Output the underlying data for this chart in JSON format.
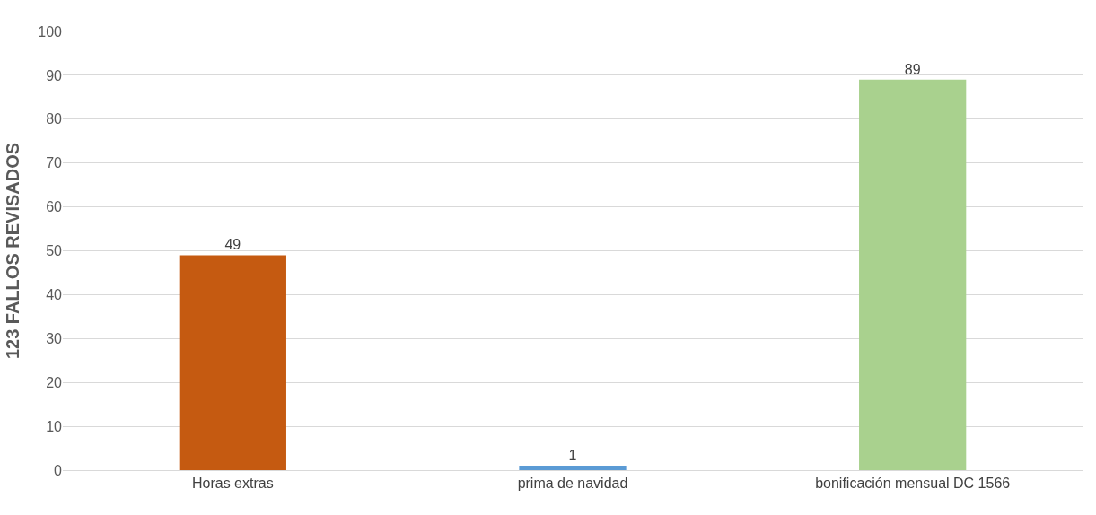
{
  "chart_data": {
    "type": "bar",
    "ylabel": "123 FALLOS REVISADOS",
    "categories": [
      "Horas extras",
      "prima de navidad",
      "bonificación mensual DC 1566"
    ],
    "values": [
      49,
      1,
      89
    ],
    "colors": [
      "#c55a11",
      "#5b9bd5",
      "#a9d18e"
    ],
    "ylim": [
      0,
      100
    ],
    "yticks": [
      0,
      10,
      20,
      30,
      40,
      50,
      60,
      70,
      80,
      90,
      100
    ],
    "grid": "y",
    "data_labels": true
  }
}
